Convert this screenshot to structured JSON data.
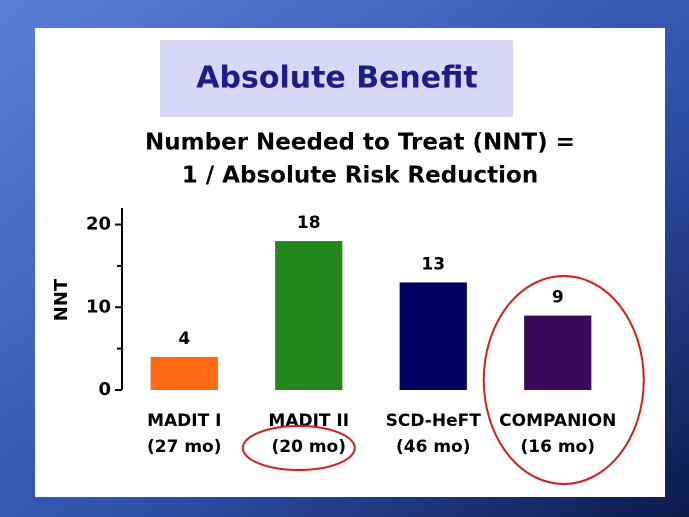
{
  "chart_data": {
    "type": "bar",
    "title": "Absolute Benefit",
    "subtitle": [
      "Number Needed to Treat (NNT) =",
      "1 / Absolute Risk Reduction"
    ],
    "y_label": "NNT",
    "categories": [
      "MADIT I",
      "MADIT II",
      "SCD-HeFT",
      "COMPANION"
    ],
    "category_periods": [
      "(27 mo)",
      "(20 mo)",
      "(46 mo)",
      "(16 mo)"
    ],
    "values": [
      4,
      18,
      13,
      9
    ],
    "colors": [
      "#ff6a13",
      "#22881e",
      "#00005e",
      "#3a0a58"
    ],
    "ylim": [
      0,
      22
    ],
    "yticks": [
      0,
      10,
      20
    ],
    "minor_yticks": [
      5,
      15
    ],
    "highlighted_categories": [
      3
    ],
    "highlighted_periods": [
      1
    ],
    "highlight_color": "#d42020"
  }
}
